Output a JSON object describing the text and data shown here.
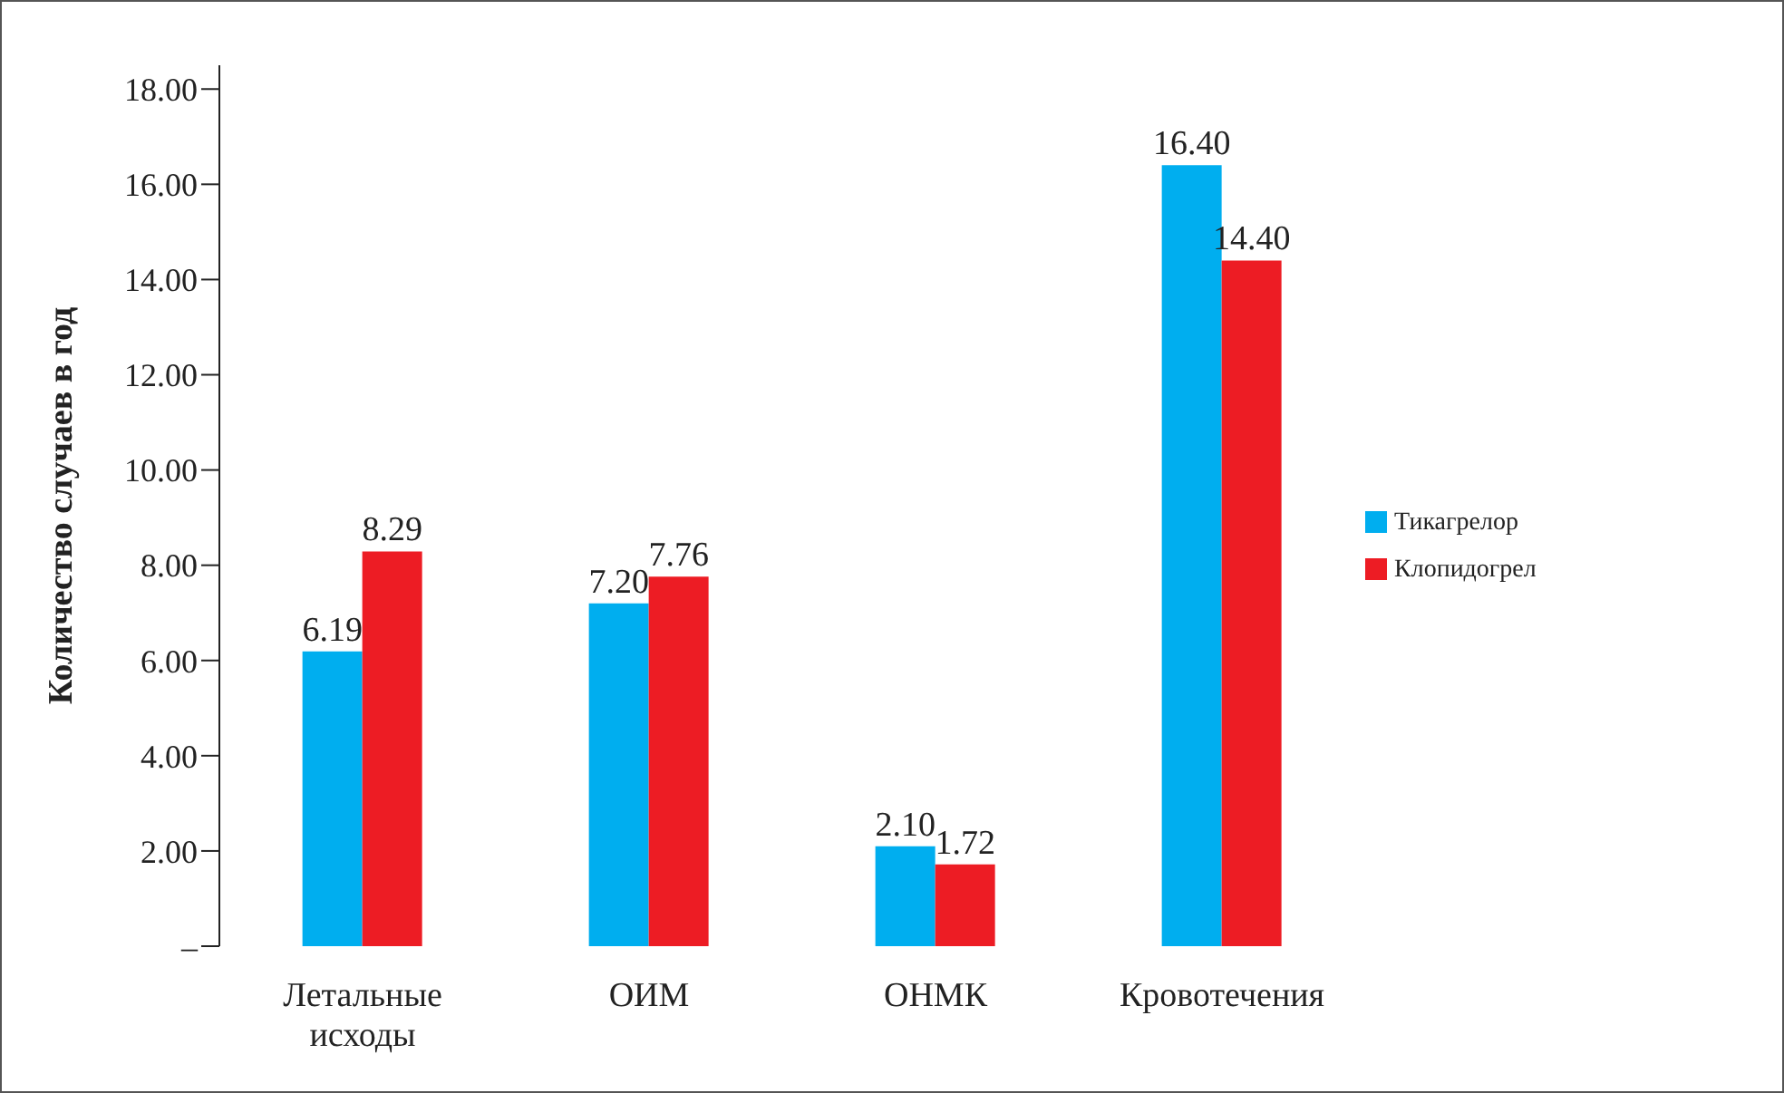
{
  "chart_data": {
    "type": "bar",
    "ylabel": "Количество случаев в год",
    "categories": [
      "Летальные исходы",
      "ОИМ",
      "ОНМК",
      "Кровотечения"
    ],
    "series": [
      {
        "name": "Тикагрелор",
        "color": "#00aeef",
        "values": [
          6.19,
          7.2,
          2.1,
          16.4
        ],
        "value_labels": [
          "6.19",
          "7.20",
          "2.10",
          "16.40"
        ]
      },
      {
        "name": "Клопидогрел",
        "color": "#ed1c24",
        "values": [
          8.29,
          7.76,
          1.72,
          14.4
        ],
        "value_labels": [
          "8.29",
          "7.76",
          "1.72",
          "14.40"
        ]
      }
    ],
    "ylim": [
      0,
      18.5
    ],
    "yticks": [
      {
        "value": 0,
        "label": "–"
      },
      {
        "value": 2,
        "label": "2.00"
      },
      {
        "value": 4,
        "label": "4.00"
      },
      {
        "value": 6,
        "label": "6.00"
      },
      {
        "value": 8,
        "label": "8.00"
      },
      {
        "value": 10,
        "label": "10.00"
      },
      {
        "value": 12,
        "label": "12.00"
      },
      {
        "value": 14,
        "label": "14.00"
      },
      {
        "value": 16,
        "label": "16.00"
      },
      {
        "value": 18,
        "label": "18.00"
      }
    ],
    "grid": false,
    "legend": "right"
  }
}
